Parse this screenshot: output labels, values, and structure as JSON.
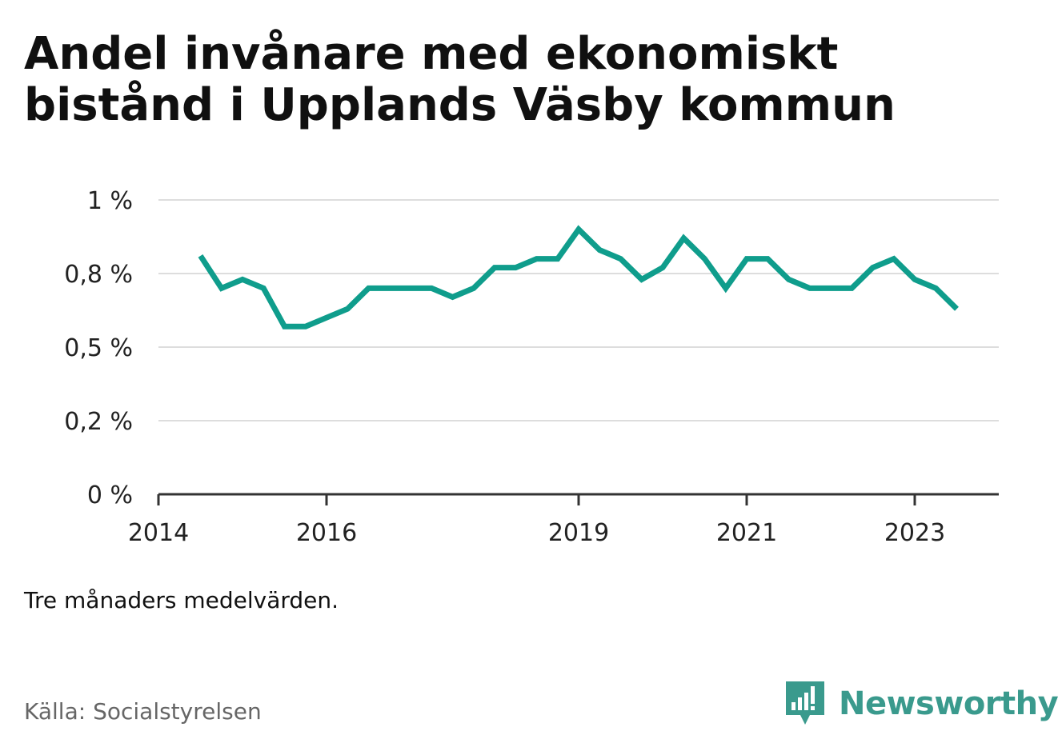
{
  "title": "Andel invånare med ekonomiskt bistånd i Upplands Väsby kommun",
  "note": "Tre månaders medelvärden.",
  "source": "Källa: Socialstyrelsen",
  "brand": {
    "name": "Newsworthy",
    "icon": "bar-chart-speech-bubble-icon",
    "color": "#3a9a8d"
  },
  "chart_data": {
    "type": "line",
    "color": "#0f9d8c",
    "grid": true,
    "y_ticks": [
      {
        "value": 0,
        "label": "0 %"
      },
      {
        "value": 0.25,
        "label": "0,2 %"
      },
      {
        "value": 0.5,
        "label": "0,5 %"
      },
      {
        "value": 0.75,
        "label": "0,8 %"
      },
      {
        "value": 1.0,
        "label": "1 %"
      }
    ],
    "ylim": [
      0,
      1.0
    ],
    "xlim": [
      "2014-01",
      "2024-01"
    ],
    "x_ticks": [
      {
        "value": "2014-01",
        "label": "2014"
      },
      {
        "value": "2016-01",
        "label": "2016"
      },
      {
        "value": "2019-01",
        "label": "2019"
      },
      {
        "value": "2021-01",
        "label": "2021"
      },
      {
        "value": "2023-01",
        "label": "2023"
      }
    ],
    "series": [
      {
        "x": [
          "2014-07",
          "2014-10",
          "2015-01",
          "2015-04",
          "2015-07",
          "2015-10",
          "2016-01",
          "2016-04",
          "2016-07",
          "2016-10",
          "2017-01",
          "2017-04",
          "2017-07",
          "2017-10",
          "2018-01",
          "2018-04",
          "2018-07",
          "2018-10",
          "2019-01",
          "2019-04",
          "2019-07",
          "2019-10",
          "2020-01",
          "2020-04",
          "2020-07",
          "2020-10",
          "2021-01",
          "2021-04",
          "2021-07",
          "2021-10",
          "2022-01",
          "2022-04",
          "2022-07",
          "2022-10",
          "2023-01",
          "2023-04",
          "2023-07"
        ],
        "values": [
          0.81,
          0.7,
          0.73,
          0.7,
          0.57,
          0.57,
          0.6,
          0.63,
          0.7,
          0.7,
          0.7,
          0.7,
          0.67,
          0.7,
          0.77,
          0.77,
          0.8,
          0.8,
          0.9,
          0.83,
          0.8,
          0.73,
          0.77,
          0.87,
          0.8,
          0.7,
          0.8,
          0.8,
          0.73,
          0.7,
          0.7,
          0.7,
          0.77,
          0.8,
          0.73,
          0.7,
          0.63
        ]
      }
    ]
  }
}
